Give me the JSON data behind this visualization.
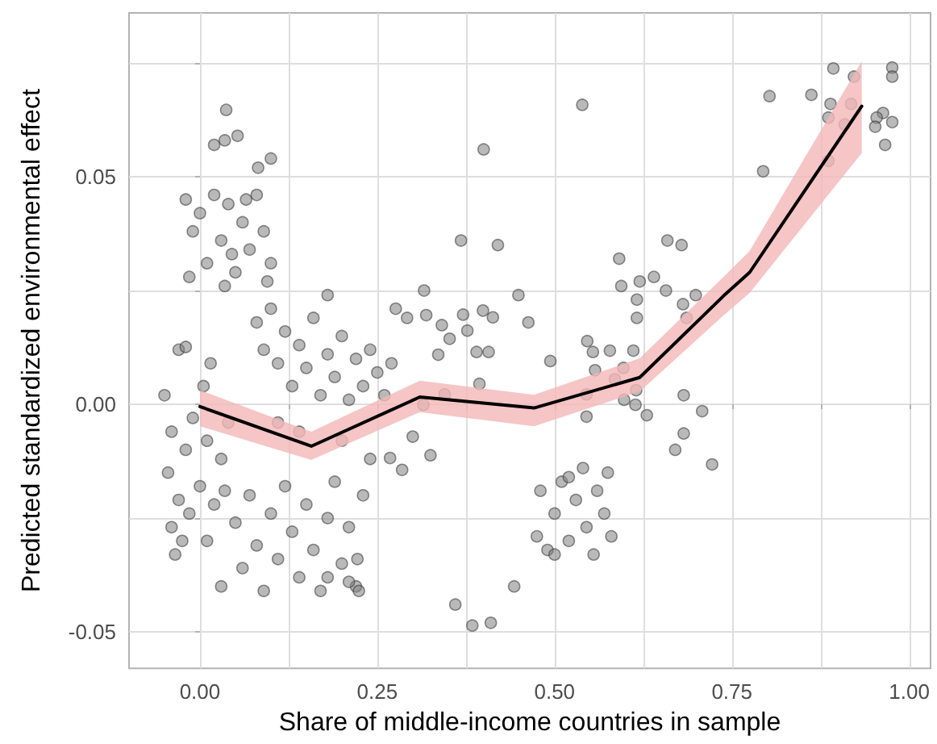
{
  "chart_data": {
    "type": "scatter",
    "xlabel": "Share of middle-income countries in sample",
    "ylabel": "Predicted standardized environmental effect",
    "xlim": [
      -0.1,
      1.03
    ],
    "ylim": [
      -0.058,
      0.086
    ],
    "xticks": [
      {
        "value": 0,
        "label": "0.00"
      },
      {
        "value": 0.125,
        "label": null
      },
      0.25,
      {
        "value": 0.375,
        "label": null
      },
      {
        "value": 0.5,
        "label": "0.50"
      },
      {
        "value": 0.625,
        "label": null
      },
      0.75,
      {
        "value": 0.875,
        "label": null
      },
      {
        "value": 1,
        "label": "1.00"
      }
    ],
    "yticks": [
      -0.05,
      {
        "value": -0.025,
        "label": null
      },
      {
        "value": 0,
        "label": "0.00"
      },
      {
        "value": 0.025,
        "label": null
      },
      0.05,
      {
        "value": 0.075,
        "label": null
      }
    ],
    "grid": true,
    "series": [
      {
        "marker": "circle",
        "color": "#808080",
        "x": [
          0.037,
          0.02,
          0.035,
          0.053,
          0.082,
          0.1,
          0.4,
          0.368,
          0.42,
          0.539,
          0.36,
          0.384,
          0.41,
          0.443,
          0.803,
          0.794,
          0.862,
          0.893,
          0.889,
          0.886,
          0.918,
          0.922,
          0.909,
          0.886,
          0.976,
          0.976,
          0.963,
          0.954,
          0.952,
          0.966,
          0.976,
          0.659,
          0.679,
          0.591,
          0.62,
          0.64,
          0.657,
          0.594,
          0.616,
          0.616,
          0.681,
          0.699,
          0.686,
          0.546,
          0.554,
          0.578,
          0.494,
          0.611,
          0.557,
          0.597,
          0.585,
          0.545,
          0.615,
          0.598,
          0.614,
          0.545,
          0.63,
          0.682,
          0.708,
          0.682,
          0.67,
          0.722,
          0.449,
          0.463,
          -0.02,
          -0.01,
          0.0,
          0.01,
          0.02,
          0.03,
          0.04,
          0.05,
          0.06,
          0.07,
          0.08,
          0.09,
          0.1,
          0.095,
          0.035,
          -0.015,
          0.065,
          0.045,
          -0.05,
          -0.04,
          -0.045,
          -0.03,
          -0.02,
          -0.01,
          0.0,
          0.01,
          0.02,
          0.03,
          0.04,
          -0.035,
          -0.025,
          -0.04,
          0.035,
          -0.015,
          0.005,
          -0.03,
          0.015,
          -0.02,
          0.01,
          0.03,
          0.05,
          0.06,
          0.07,
          0.08,
          0.09,
          0.1,
          0.11,
          0.12,
          0.13,
          0.14,
          0.15,
          0.16,
          0.17,
          0.18,
          0.19,
          0.2,
          0.21,
          0.22,
          0.23,
          0.18,
          0.21,
          0.224,
          0.222,
          0.08,
          0.09,
          0.1,
          0.11,
          0.12,
          0.13,
          0.14,
          0.15,
          0.16,
          0.17,
          0.18,
          0.19,
          0.2,
          0.21,
          0.22,
          0.23,
          0.24,
          0.25,
          0.26,
          0.27,
          0.14,
          0.2,
          0.24,
          0.11,
          0.18,
          0.276,
          0.316,
          0.319,
          0.292,
          0.341,
          0.371,
          0.399,
          0.413,
          0.377,
          0.352,
          0.39,
          0.407,
          0.336,
          0.394,
          0.345,
          0.315,
          0.268,
          0.285,
          0.325,
          0.3,
          0.475,
          0.48,
          0.49,
          0.5,
          0.51,
          0.52,
          0.53,
          0.54,
          0.545,
          0.555,
          0.56,
          0.57,
          0.575,
          0.58,
          0.52,
          0.5
        ],
        "values": [
          0.0647,
          0.057,
          0.058,
          0.059,
          0.052,
          0.054,
          0.056,
          0.036,
          0.035,
          0.0658,
          -0.044,
          -0.0486,
          -0.048,
          -0.04,
          0.0677,
          0.0512,
          0.068,
          0.0738,
          0.066,
          0.063,
          0.066,
          0.072,
          0.0615,
          0.0535,
          0.074,
          0.072,
          0.064,
          0.063,
          0.061,
          0.057,
          0.062,
          0.036,
          0.035,
          0.032,
          0.027,
          0.028,
          0.025,
          0.026,
          0.023,
          0.019,
          0.022,
          0.024,
          0.019,
          0.0139,
          0.0115,
          0.0118,
          0.0095,
          0.0118,
          0.0075,
          0.008,
          0.0055,
          0.0022,
          0.0031,
          0.001,
          -0.0001,
          -0.0027,
          -0.0024,
          0.002,
          -0.0015,
          -0.0064,
          -0.01,
          -0.0132,
          0.024,
          0.018,
          0.045,
          0.038,
          0.042,
          0.031,
          0.046,
          0.036,
          0.044,
          0.029,
          0.04,
          0.034,
          0.046,
          0.038,
          0.031,
          0.027,
          0.026,
          0.028,
          0.045,
          0.033,
          0.002,
          -0.006,
          -0.015,
          -0.021,
          -0.01,
          -0.003,
          -0.018,
          -0.008,
          -0.022,
          -0.012,
          -0.004,
          -0.033,
          -0.03,
          -0.027,
          -0.019,
          -0.024,
          0.004,
          0.012,
          0.009,
          0.0126,
          -0.03,
          -0.04,
          -0.026,
          -0.036,
          -0.02,
          -0.031,
          -0.041,
          -0.024,
          -0.034,
          -0.018,
          -0.028,
          -0.038,
          -0.022,
          -0.032,
          -0.041,
          -0.025,
          -0.017,
          -0.035,
          -0.027,
          -0.04,
          -0.02,
          -0.038,
          -0.039,
          -0.041,
          -0.034,
          0.018,
          0.012,
          0.021,
          0.009,
          0.016,
          0.004,
          0.013,
          0.008,
          0.019,
          0.002,
          0.011,
          0.006,
          0.015,
          0.001,
          0.01,
          0.004,
          0.012,
          0.007,
          0.002,
          0.009,
          -0.006,
          -0.008,
          -0.012,
          -0.004,
          0.024,
          0.021,
          0.025,
          0.0196,
          0.019,
          0.0174,
          0.0197,
          0.0206,
          0.0191,
          0.0162,
          0.0144,
          0.0115,
          0.0115,
          0.0109,
          0.0045,
          0.0022,
          -0.0001,
          -0.0118,
          -0.0144,
          -0.0112,
          -0.0071,
          -0.029,
          -0.019,
          -0.032,
          -0.024,
          -0.017,
          -0.03,
          -0.021,
          -0.014,
          -0.027,
          -0.033,
          -0.019,
          -0.024,
          -0.015,
          -0.029,
          -0.016,
          -0.033
        ]
      },
      {
        "type": "line",
        "marker": "none",
        "line_style": "solid",
        "color": "#000000",
        "x": [
          0.0,
          0.157,
          0.31,
          0.471,
          0.62,
          0.738,
          0.775,
          0.933
        ],
        "values": [
          -0.0005,
          -0.0092,
          0.0016,
          -0.0008,
          0.0059,
          0.0238,
          0.029,
          0.0655
        ],
        "lower": [
          -0.0048,
          -0.0122,
          -0.0017,
          -0.0048,
          0.0028,
          0.0195,
          0.0245,
          0.0552
        ],
        "upper": [
          0.0031,
          -0.006,
          0.0052,
          0.0021,
          0.0101,
          0.028,
          0.0337,
          0.0754
        ]
      }
    ]
  }
}
